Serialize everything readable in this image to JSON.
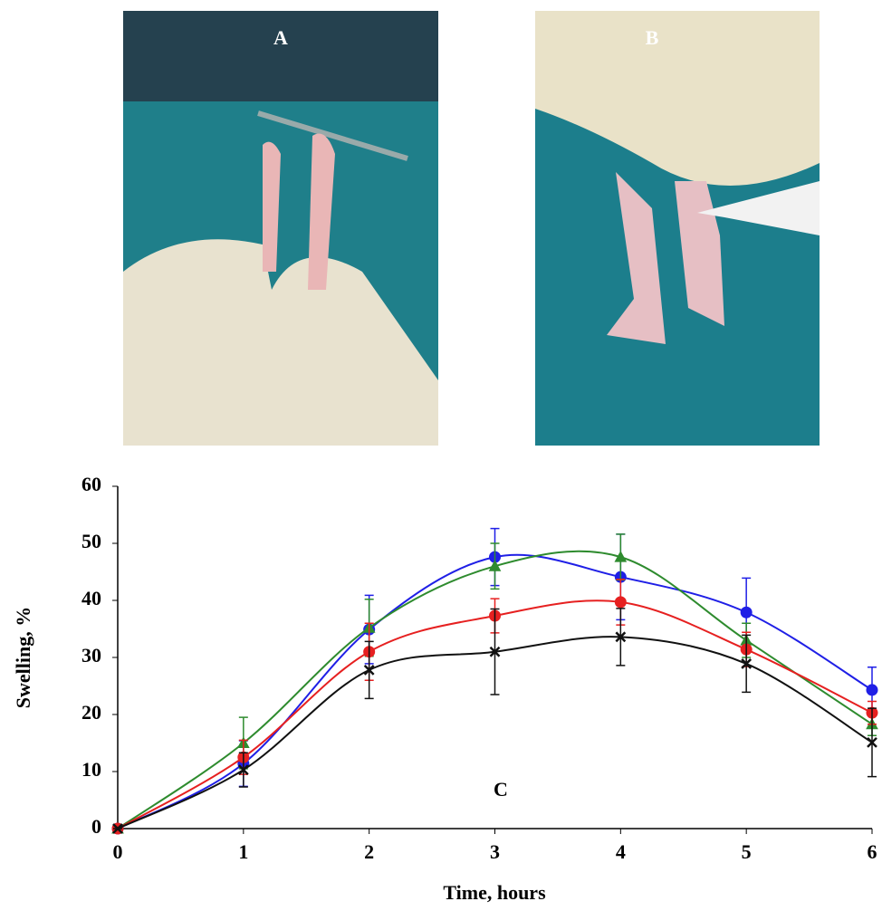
{
  "panel_labels": {
    "a": "A",
    "b": "B"
  },
  "chart_data": {
    "type": "line",
    "annotation": "C",
    "x_label": "Time, hours",
    "y_label": "Swelling, %",
    "x": [
      0,
      1,
      2,
      3,
      4,
      5,
      6
    ],
    "xlim": [
      0,
      6
    ],
    "xticks": [
      0,
      1,
      2,
      3,
      4,
      5,
      6
    ],
    "ylim": [
      0,
      60
    ],
    "yticks": [
      0,
      10,
      20,
      30,
      40,
      50,
      60
    ],
    "series": [
      {
        "color": "#1f1fe6",
        "marker": "circle",
        "values": [
          0,
          11.4,
          34.9,
          47.6,
          44.1,
          37.9,
          24.3
        ],
        "errors": [
          0,
          4,
          6,
          5,
          7.5,
          6,
          4
        ]
      },
      {
        "color": "#2e8b2e",
        "marker": "triangle",
        "values": [
          0,
          15,
          35.2,
          46,
          47.6,
          33,
          18.3
        ],
        "errors": [
          0,
          4.5,
          5,
          4,
          4,
          3,
          2
        ]
      },
      {
        "color": "#e62020",
        "marker": "circle",
        "values": [
          0,
          12.5,
          31,
          37.3,
          39.7,
          31.4,
          20.3
        ],
        "errors": [
          0,
          3,
          5,
          3,
          4,
          3,
          2
        ]
      },
      {
        "color": "#111111",
        "marker": "cross",
        "values": [
          0,
          10.3,
          27.8,
          31,
          33.6,
          28.9,
          15.1
        ],
        "errors": [
          0,
          3,
          5,
          7.5,
          5,
          5,
          6
        ]
      }
    ]
  }
}
